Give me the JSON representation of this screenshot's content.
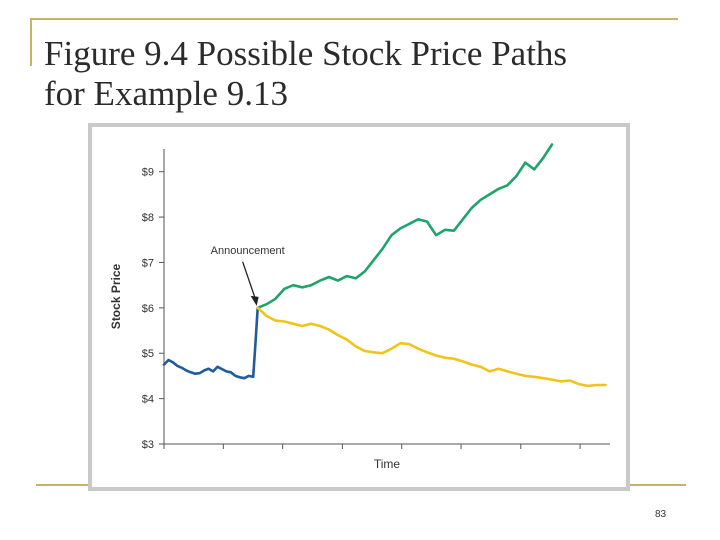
{
  "slide": {
    "title_line1": "Figure 9.4  Possible Stock Price Paths",
    "title_line2": "for Example 9.13",
    "page_number": "83",
    "accent_color": "#c8b26a"
  },
  "chart_data": {
    "type": "line",
    "title": "",
    "xlabel": "Time",
    "ylabel": "Stock Price",
    "ylim": [
      3,
      9.5
    ],
    "xlim": [
      0,
      100
    ],
    "yticks": [
      3,
      4,
      5,
      6,
      7,
      8,
      9
    ],
    "ytick_labels": [
      "$3",
      "$4",
      "$5",
      "$6",
      "$7",
      "$8",
      "$9"
    ],
    "xticks": [
      0,
      13.3,
      26.6,
      40,
      53.3,
      66.6,
      80,
      93.3
    ],
    "xtick_labels": [
      "",
      "",
      "",
      "",
      "",
      "",
      "",
      ""
    ],
    "grid": false,
    "legend": "none",
    "annotations": [
      {
        "text": "Announcement",
        "target_x": 21,
        "target_y": 6.0
      }
    ],
    "series": [
      {
        "color": "#1f5c99",
        "x": [
          0,
          1,
          2,
          3,
          4,
          5,
          6,
          7,
          8,
          9,
          10,
          11,
          12,
          13,
          14,
          15,
          16,
          17,
          18,
          19,
          20,
          20.5,
          21
        ],
        "y": [
          4.75,
          4.85,
          4.8,
          4.72,
          4.68,
          4.62,
          4.58,
          4.55,
          4.56,
          4.62,
          4.66,
          4.6,
          4.7,
          4.65,
          4.6,
          4.58,
          4.5,
          4.47,
          4.45,
          4.5,
          4.48,
          5.2,
          6.0
        ]
      },
      {
        "color": "#1ea46a",
        "x": [
          21,
          23,
          25,
          27,
          29,
          31,
          33,
          35,
          37,
          39,
          41,
          43,
          45,
          47,
          49,
          51,
          53,
          55,
          57,
          59,
          61,
          63,
          65,
          67,
          69,
          71,
          73,
          75,
          77,
          79,
          81,
          83,
          85,
          87
        ],
        "y": [
          6.0,
          6.08,
          6.2,
          6.42,
          6.5,
          6.45,
          6.5,
          6.6,
          6.68,
          6.6,
          6.7,
          6.65,
          6.8,
          7.05,
          7.3,
          7.6,
          7.75,
          7.85,
          7.95,
          7.9,
          7.6,
          7.72,
          7.7,
          7.95,
          8.2,
          8.38,
          8.5,
          8.62,
          8.7,
          8.9,
          9.2,
          9.05,
          9.3,
          9.6
        ]
      },
      {
        "color": "#f0c419",
        "x": [
          21,
          23,
          25,
          27,
          29,
          31,
          33,
          35,
          37,
          39,
          41,
          43,
          45,
          47,
          49,
          51,
          53,
          55,
          57,
          59,
          61,
          63,
          65,
          67,
          69,
          71,
          73,
          75,
          77,
          79,
          81,
          83,
          85,
          87,
          89,
          91,
          93,
          95,
          97,
          99
        ],
        "y": [
          6.0,
          5.82,
          5.72,
          5.7,
          5.65,
          5.6,
          5.65,
          5.6,
          5.52,
          5.4,
          5.3,
          5.15,
          5.05,
          5.02,
          5.0,
          5.1,
          5.22,
          5.2,
          5.1,
          5.02,
          4.95,
          4.9,
          4.88,
          4.82,
          4.75,
          4.7,
          4.6,
          4.66,
          4.6,
          4.55,
          4.5,
          4.48,
          4.45,
          4.42,
          4.38,
          4.4,
          4.32,
          4.28,
          4.3,
          4.3
        ]
      }
    ]
  }
}
